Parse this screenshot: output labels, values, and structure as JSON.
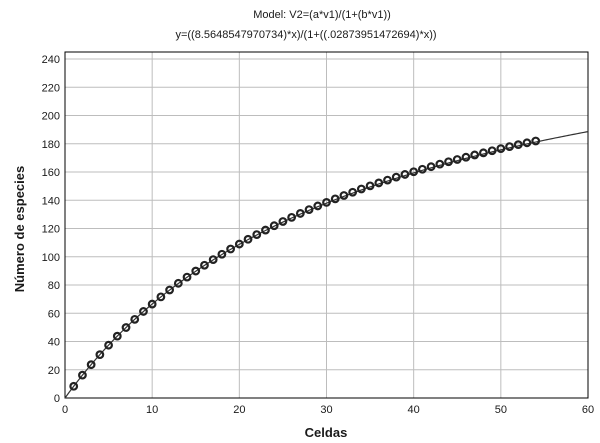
{
  "chart_data": {
    "type": "scatter",
    "title": "Model: V2=(a*v1)/(1+(b*v1))",
    "subtitle": "y=((8.5648547970734)*x)/(1+((.02873951472694)*x))",
    "xlabel": "Celdas",
    "ylabel": "Número de especies",
    "xlim": [
      0,
      60
    ],
    "ylim": [
      0,
      245
    ],
    "xticks": [
      0,
      10,
      20,
      30,
      40,
      50,
      60
    ],
    "yticks": [
      0,
      20,
      40,
      60,
      80,
      100,
      120,
      140,
      160,
      180,
      200,
      220,
      240
    ],
    "grid": true,
    "fit": {
      "a": 8.5648547970734,
      "b": 0.02873951472694,
      "x_range": [
        0,
        60
      ]
    },
    "series": [
      {
        "x": [
          1,
          2,
          3,
          4,
          5,
          6,
          7,
          8,
          9,
          10,
          11,
          12,
          13,
          14,
          15,
          16,
          17,
          18,
          19,
          20,
          21,
          22,
          23,
          24,
          25,
          26,
          27,
          28,
          29,
          30,
          31,
          32,
          33,
          34,
          35,
          36,
          37,
          38,
          39,
          40,
          41,
          42,
          43,
          44,
          45,
          46,
          47,
          48,
          49,
          50,
          51,
          52,
          53,
          54
        ],
        "y": [
          8.3,
          16.2,
          23.6,
          30.7,
          37.4,
          43.8,
          49.9,
          55.7,
          61.3,
          66.5,
          71.6,
          76.5,
          81.2,
          85.6,
          89.9,
          94.0,
          98.0,
          101.8,
          105.5,
          109.0,
          112.4,
          115.7,
          118.9,
          122.0,
          125.0,
          127.9,
          130.7,
          133.4,
          136.0,
          138.5,
          141.0,
          143.4,
          145.7,
          148.0,
          150.2,
          152.3,
          154.3,
          156.4,
          158.3,
          160.2,
          162.0,
          163.8,
          165.6,
          167.3,
          168.9,
          170.5,
          172.1,
          173.6,
          175.1,
          176.6,
          178.0,
          179.4,
          180.7,
          182.0
        ]
      }
    ]
  }
}
